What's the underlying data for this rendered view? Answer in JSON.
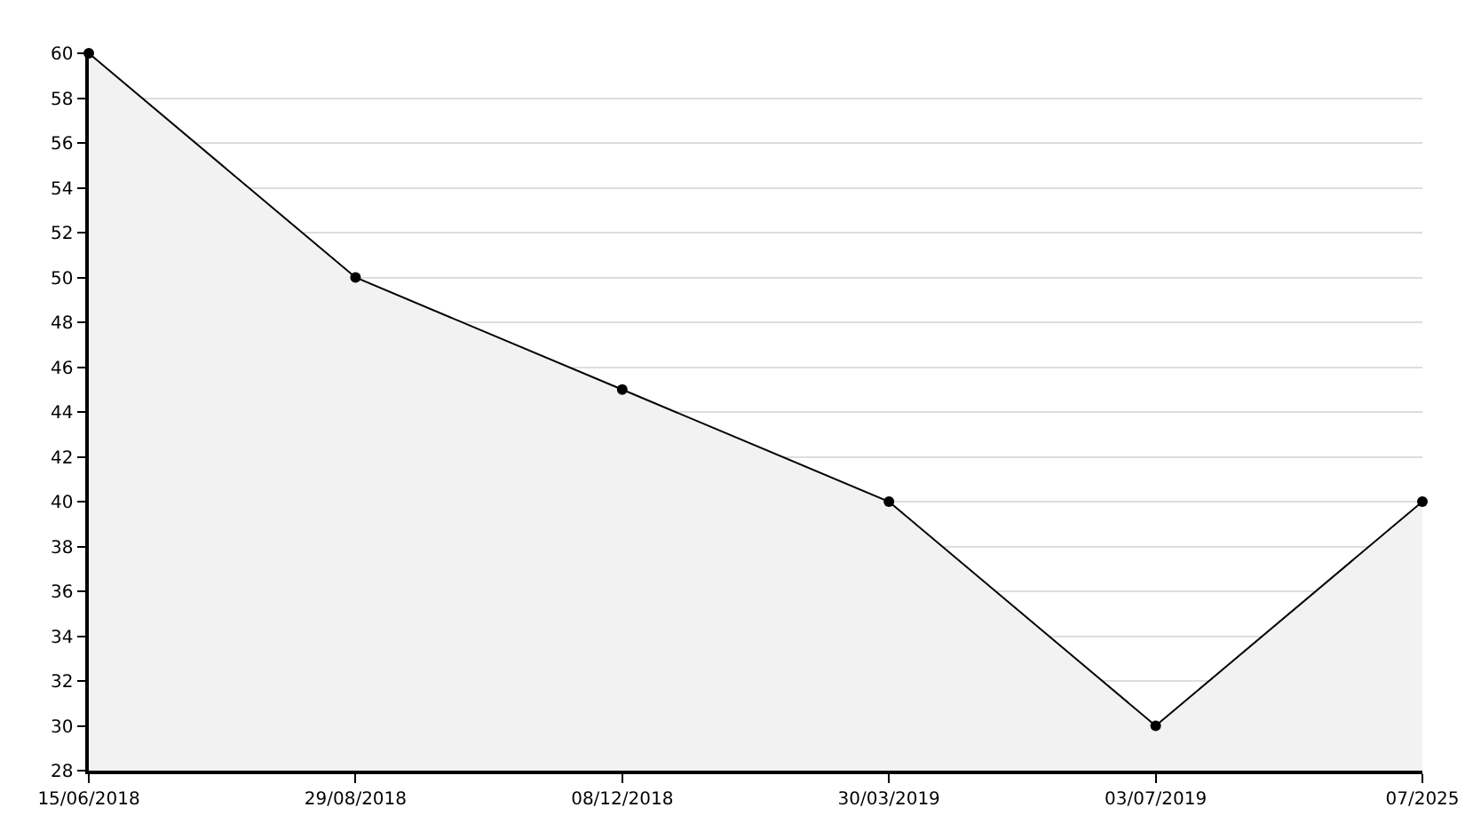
{
  "chart_data": {
    "type": "area",
    "categories": [
      "15/06/2018",
      "29/08/2018",
      "08/12/2018",
      "30/03/2019",
      "03/07/2019",
      "07/2025"
    ],
    "series": [
      {
        "color": "#000000",
        "values": [
          60,
          50,
          45,
          40,
          30,
          40
        ]
      }
    ],
    "ylim": [
      28,
      60
    ],
    "yticks": [
      28,
      30,
      32,
      34,
      36,
      38,
      40,
      42,
      44,
      46,
      48,
      50,
      52,
      54,
      56,
      58,
      60
    ],
    "grid": "y",
    "marker": "circle",
    "line_style": "solid"
  }
}
